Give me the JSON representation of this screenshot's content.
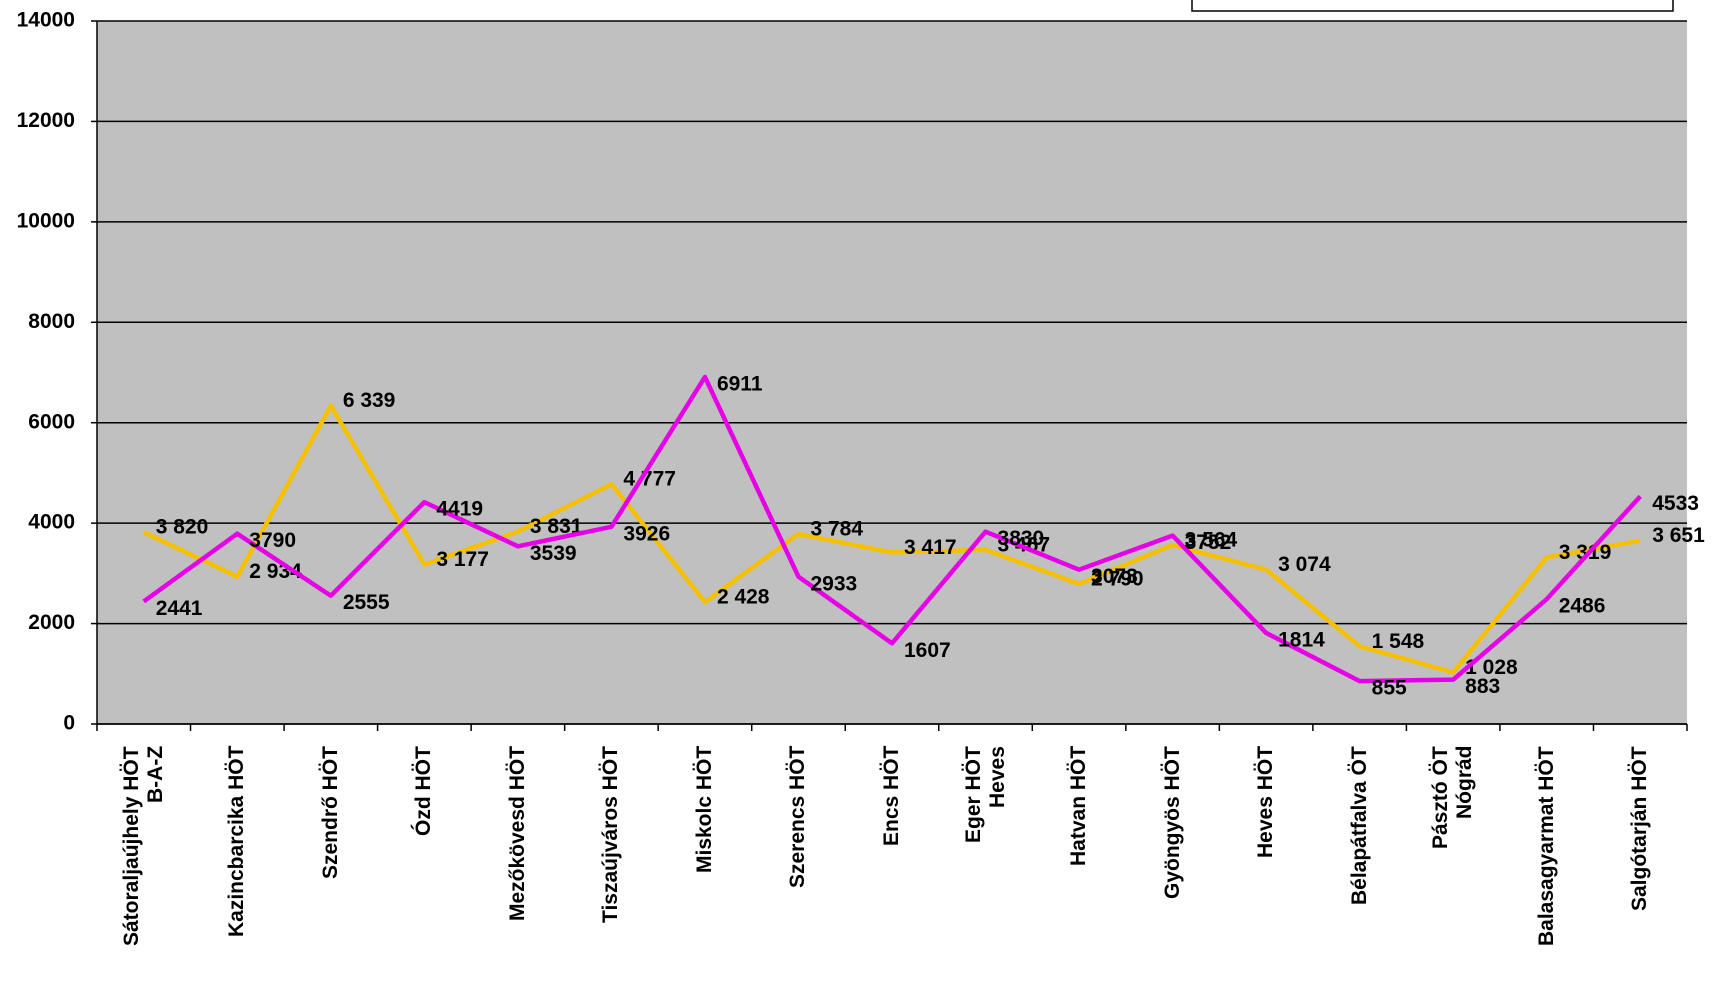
{
  "chart_data": {
    "type": "line",
    "categories": [
      "Sátoraljaújhely HÖT\nB-A-Z",
      "Kazincbarcika HÖT",
      "Szendrő HÖT",
      "Ózd HÖT",
      "Mezőkövesd HÖT",
      "Tiszaújváros HÖT",
      "Miskolc HÖT",
      "Szerencs HÖT",
      "Encs HÖT",
      "Eger HÖT\nHeves",
      "Hatvan HÖT",
      "Gyöngyös HÖT",
      "Heves HÖT",
      "Bélapátfalva ÖT",
      "Pásztó ÖT\nNógrád",
      "Balasagyarmat HÖT",
      "Salgótarján HÖT"
    ],
    "series": [
      {
        "color": "#f5c000",
        "values": [
          3820,
          2934,
          6339,
          3177,
          3831,
          4777,
          2428,
          3784,
          3417,
          3467,
          2790,
          3564,
          3074,
          1548,
          1028,
          3319,
          3651
        ],
        "value_labels": [
          "3 820",
          "2 934",
          "6 339",
          "3 177",
          "3 831",
          "4 777",
          "2 428",
          "3 784",
          "3 417",
          "3 467",
          "2 790",
          "3 564",
          "3 074",
          "1 548",
          "1 028",
          "3 319",
          "3 651"
        ]
      },
      {
        "color": "#e600e6",
        "values": [
          2441,
          3790,
          2555,
          4419,
          3539,
          3926,
          6911,
          2933,
          1607,
          3830,
          3073,
          3752,
          1814,
          855,
          883,
          2486,
          4533
        ]
      }
    ],
    "ylim": [
      0,
      14000
    ],
    "yticks": [
      0,
      2000,
      4000,
      6000,
      8000,
      10000,
      12000,
      14000
    ],
    "grid": true,
    "plot_background": "#c0c0c0"
  }
}
